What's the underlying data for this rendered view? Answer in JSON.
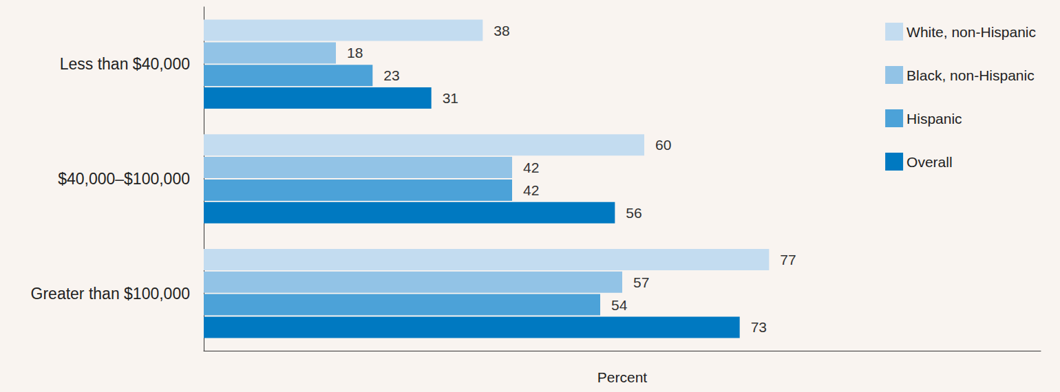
{
  "chart_data": {
    "type": "bar",
    "orientation": "horizontal",
    "categories": [
      "Less than $40,000",
      "$40,000–$100,000",
      "Greater than $100,000"
    ],
    "series": [
      {
        "name": "White, non-Hispanic",
        "color": "#c3dcf0",
        "values": [
          38,
          60,
          77
        ]
      },
      {
        "name": "Black, non-Hispanic",
        "color": "#92c3e6",
        "values": [
          18,
          42,
          57
        ]
      },
      {
        "name": "Hispanic",
        "color": "#4ca2d8",
        "values": [
          23,
          42,
          54
        ]
      },
      {
        "name": "Overall",
        "color": "#0079c1",
        "values": [
          31,
          56,
          73
        ]
      }
    ],
    "xlabel": "Percent",
    "xlim": [
      0,
      114
    ],
    "tick_labels": "y",
    "grid": false,
    "legend": "upper right",
    "data_labels": true
  }
}
